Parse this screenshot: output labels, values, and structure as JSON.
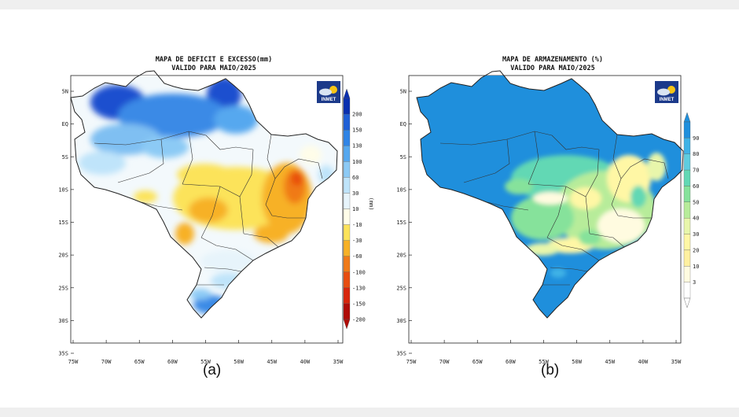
{
  "panel_a": {
    "title_line1": "MAPA DE DEFICIT E EXCESSO(mm)",
    "title_line2": "VALIDO PARA MAIO/2025",
    "caption": "(a)",
    "logo_text": "INMET",
    "units_label": "(mm)",
    "lat_ticks": [
      "5N",
      "EQ",
      "5S",
      "10S",
      "15S",
      "20S",
      "25S",
      "30S",
      "35S"
    ],
    "lon_ticks": [
      "75W",
      "70W",
      "65W",
      "60W",
      "55W",
      "50W",
      "45W",
      "40W",
      "35W"
    ],
    "colorbar": {
      "labels": [
        "200",
        "150",
        "130",
        "100",
        "60",
        "30",
        "10",
        "-10",
        "-30",
        "-60",
        "-100",
        "-130",
        "-150",
        "-200"
      ],
      "colors": [
        "#0a2fb0",
        "#1f5fd6",
        "#2f84e6",
        "#56a8ef",
        "#8ccaf5",
        "#bfe4fa",
        "#e7f4fb",
        "#fffde9",
        "#fce35a",
        "#f7b126",
        "#f07a18",
        "#e84d10",
        "#d8250c",
        "#b00c08"
      ]
    }
  },
  "panel_b": {
    "title_line1": "MAPA DE ARMAZENAMENTO (%)",
    "title_line2": "VALIDO PARA MAIO/2025",
    "caption": "(b)",
    "logo_text": "INMET",
    "lat_ticks": [
      "5N",
      "EQ",
      "5S",
      "10S",
      "15S",
      "20S",
      "25S",
      "30S",
      "35S"
    ],
    "lon_ticks": [
      "75W",
      "70W",
      "65W",
      "60W",
      "55W",
      "50W",
      "45W",
      "40W",
      "35W"
    ],
    "colorbar": {
      "labels": [
        "90",
        "80",
        "70",
        "60",
        "50",
        "40",
        "30",
        "20",
        "10",
        "3"
      ],
      "colors": [
        "#1f8fdc",
        "#3fb2e6",
        "#5ecde0",
        "#62d8b4",
        "#86e29b",
        "#b7ec9a",
        "#e8f6ab",
        "#fff7a5",
        "#fff0a0",
        "#fffbe0",
        "#ffffff"
      ]
    }
  }
}
